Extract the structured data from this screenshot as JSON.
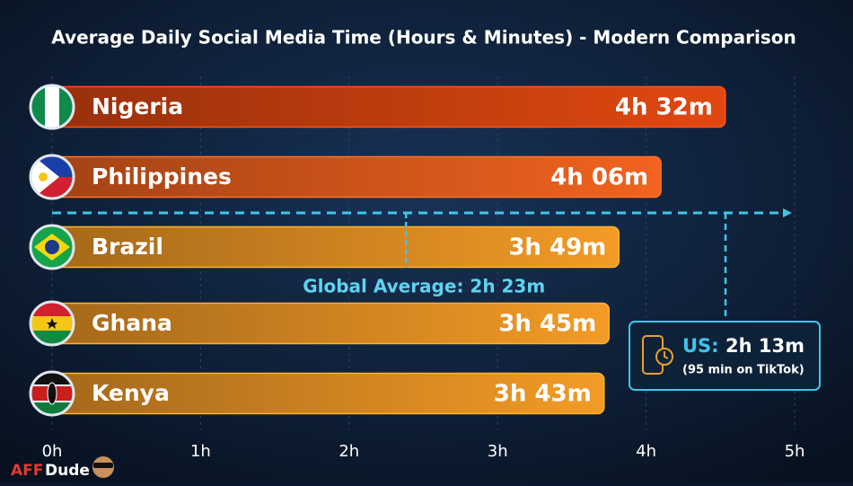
{
  "chart_data": {
    "type": "hbar",
    "title": "Average Daily Social Media Time (Hours & Minutes) - Modern Comparison",
    "categories": [
      "Nigeria",
      "Philippines",
      "Brazil",
      "Ghana",
      "Kenya"
    ],
    "values": [
      4.5333,
      4.1,
      3.8167,
      3.75,
      3.7167
    ],
    "value_labels": [
      "4h 32m",
      "4h 06m",
      "3h 49m",
      "3h 45m",
      "3h 43m"
    ],
    "colors": [
      "#c9400f",
      "#d8581c",
      "#d98a22",
      "#d98a22",
      "#d98a22"
    ],
    "xlim": [
      0,
      5
    ],
    "xticks": [
      {
        "value": 0,
        "label": "0h"
      },
      {
        "value": 1,
        "label": "1h"
      },
      {
        "value": 2,
        "label": "2h"
      },
      {
        "value": 3,
        "label": "3h"
      },
      {
        "value": 4,
        "label": "4h"
      },
      {
        "value": 5,
        "label": "5h"
      }
    ],
    "grid": true,
    "global_average": {
      "value": 2.3833,
      "label": "Global Average: 2h 23m"
    },
    "callout": {
      "label": "US:",
      "value_label": "2h 13m",
      "note": "(95 min on TikTok)"
    }
  },
  "watermark": {
    "brand": "AFF",
    "name": "Dude"
  }
}
